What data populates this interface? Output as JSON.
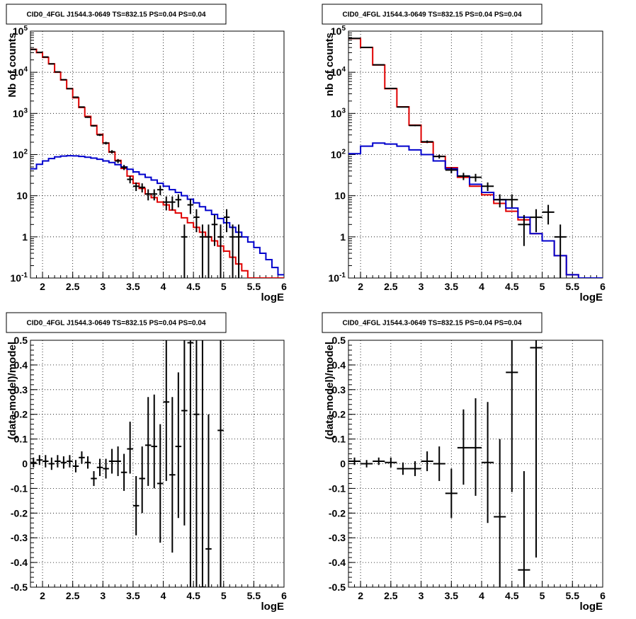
{
  "chart_data": [
    {
      "id": "p1",
      "type": "line",
      "title": "CID0_4FGL J1544.3-0649 TS=832.15 PS=0.04 PS=0.04",
      "xlabel": "logE",
      "ylabel": "Nb of counts",
      "xlim": [
        1.8,
        6.0
      ],
      "ylim": [
        0.1,
        100000
      ],
      "log_y": true,
      "grid": true,
      "x_ticks": [
        "2",
        "2.5",
        "3",
        "3.5",
        "4",
        "4.5",
        "5",
        "5.5",
        "6"
      ],
      "y_ticks": [
        "10^-1",
        "1",
        "10",
        "10^2",
        "10^3",
        "10^4",
        "10^5"
      ],
      "bin_width": 0.1,
      "bin_start": 1.8,
      "series": [
        {
          "color": "#e00000",
          "style": "step",
          "values": [
            36000,
            30000,
            23000,
            16000,
            10000,
            6500,
            4000,
            2400,
            1400,
            850,
            510,
            310,
            190,
            115,
            72,
            46,
            30,
            20,
            15,
            11,
            9,
            7,
            6,
            4.5,
            3.8,
            2.9,
            2.2,
            1.7,
            1.3,
            1.0,
            0.8,
            0.6,
            0.45,
            0.32,
            0.22,
            0.15,
            0.1,
            0.1,
            0.1,
            0.1,
            0.1,
            0.1
          ]
        },
        {
          "color": "#0000cc",
          "style": "step",
          "values": [
            45,
            58,
            70,
            80,
            88,
            92,
            94,
            93,
            90,
            86,
            82,
            77,
            70,
            64,
            57,
            50,
            44,
            38,
            33,
            28,
            24,
            20,
            17,
            14,
            12,
            10,
            8.2,
            6.7,
            5.4,
            4.4,
            3.5,
            2.8,
            2.2,
            1.7,
            1.3,
            1.0,
            0.75,
            0.55,
            0.4,
            0.28,
            0.18,
            0.12
          ]
        }
      ],
      "points": [
        {
          "x": 1.85,
          "y": 36000,
          "lo": 35700,
          "hi": 36300
        },
        {
          "x": 1.95,
          "y": 30500,
          "lo": 30200,
          "hi": 30800
        },
        {
          "x": 2.05,
          "y": 23500,
          "lo": 23200,
          "hi": 23800
        },
        {
          "x": 2.15,
          "y": 16000,
          "lo": 15800,
          "hi": 16200
        },
        {
          "x": 2.25,
          "y": 10200,
          "lo": 10000,
          "hi": 10400
        },
        {
          "x": 2.35,
          "y": 6600,
          "lo": 6500,
          "hi": 6700
        },
        {
          "x": 2.45,
          "y": 4000,
          "lo": 3930,
          "hi": 4070
        },
        {
          "x": 2.55,
          "y": 2480,
          "lo": 2430,
          "hi": 2530
        },
        {
          "x": 2.65,
          "y": 1430,
          "lo": 1390,
          "hi": 1470
        },
        {
          "x": 2.75,
          "y": 810,
          "lo": 780,
          "hi": 840
        },
        {
          "x": 2.85,
          "y": 500,
          "lo": 480,
          "hi": 520
        },
        {
          "x": 2.95,
          "y": 300,
          "lo": 283,
          "hi": 317
        },
        {
          "x": 3.05,
          "y": 190,
          "lo": 176,
          "hi": 204
        },
        {
          "x": 3.15,
          "y": 117,
          "lo": 106,
          "hi": 128
        },
        {
          "x": 3.25,
          "y": 70,
          "lo": 62,
          "hi": 78
        },
        {
          "x": 3.35,
          "y": 49,
          "lo": 42,
          "hi": 56
        },
        {
          "x": 3.45,
          "y": 25,
          "lo": 20,
          "hi": 30
        },
        {
          "x": 3.55,
          "y": 17,
          "lo": 13,
          "hi": 21
        },
        {
          "x": 3.65,
          "y": 16,
          "lo": 12,
          "hi": 20
        },
        {
          "x": 3.75,
          "y": 11,
          "lo": 7.7,
          "hi": 14.3
        },
        {
          "x": 3.85,
          "y": 11,
          "lo": 7.7,
          "hi": 14.3
        },
        {
          "x": 3.95,
          "y": 14,
          "lo": 10.3,
          "hi": 17.7
        },
        {
          "x": 4.05,
          "y": 7,
          "lo": 4.4,
          "hi": 9.6
        },
        {
          "x": 4.15,
          "y": 7,
          "lo": 4.4,
          "hi": 9.6
        },
        {
          "x": 4.25,
          "y": 8,
          "lo": 5.2,
          "hi": 10.8
        },
        {
          "x": 4.35,
          "y": 1,
          "lo": 0.1,
          "hi": 2
        },
        {
          "x": 4.45,
          "y": 6,
          "lo": 3.6,
          "hi": 8.4
        },
        {
          "x": 4.55,
          "y": 3,
          "lo": 1.3,
          "hi": 4.7
        },
        {
          "x": 4.65,
          "y": 1,
          "lo": 0.1,
          "hi": 2
        },
        {
          "x": 4.75,
          "y": 1,
          "lo": 0.1,
          "hi": 2
        },
        {
          "x": 4.85,
          "y": 2,
          "lo": 0.6,
          "hi": 3.4
        },
        {
          "x": 4.95,
          "y": 1,
          "lo": 0.1,
          "hi": 2
        },
        {
          "x": 5.05,
          "y": 3,
          "lo": 1.3,
          "hi": 4.7
        },
        {
          "x": 5.15,
          "y": 1,
          "lo": 0.1,
          "hi": 2
        },
        {
          "x": 5.25,
          "y": 1,
          "lo": 0.1,
          "hi": 2
        }
      ]
    },
    {
      "id": "p2",
      "type": "line",
      "title": "CID0_4FGL J1544.3-0649 TS=832.15 PS=0.04 PS=0.04",
      "xlabel": "logE",
      "ylabel": "nb of counts",
      "xlim": [
        1.8,
        6.0
      ],
      "ylim": [
        0.1,
        100000
      ],
      "log_y": true,
      "grid": true,
      "x_ticks": [
        "2",
        "2.5",
        "3",
        "3.5",
        "4",
        "4.5",
        "5",
        "5.5",
        "6"
      ],
      "y_ticks": [
        "10^-1",
        "1",
        "10",
        "10^2",
        "10^3",
        "10^4",
        "10^5"
      ],
      "bin_width": 0.2,
      "bin_start": 1.8,
      "series": [
        {
          "color": "#e00000",
          "style": "step",
          "values": [
            66000,
            40000,
            15000,
            4000,
            1450,
            520,
            200,
            90,
            48,
            28,
            17,
            10.5,
            6.5,
            4.2,
            2.6,
            1.2,
            0.8,
            0.35,
            0.12,
            0.1,
            0.1
          ]
        },
        {
          "color": "#0000cc",
          "style": "step",
          "values": [
            105,
            160,
            190,
            180,
            160,
            130,
            100,
            70,
            45,
            30,
            19,
            12,
            8,
            5,
            3,
            1.2,
            0.8,
            0.35,
            0.12,
            0.1,
            0.1
          ]
        }
      ],
      "points": [
        {
          "x": 1.9,
          "y": 66500,
          "lo": 66200,
          "hi": 66800
        },
        {
          "x": 2.1,
          "y": 40300,
          "lo": 40000,
          "hi": 40600
        },
        {
          "x": 2.3,
          "y": 15200,
          "lo": 15000,
          "hi": 15400
        },
        {
          "x": 2.5,
          "y": 4050,
          "lo": 3980,
          "hi": 4120
        },
        {
          "x": 2.7,
          "y": 1430,
          "lo": 1390,
          "hi": 1470
        },
        {
          "x": 2.9,
          "y": 510,
          "lo": 490,
          "hi": 530
        },
        {
          "x": 3.1,
          "y": 205,
          "lo": 190,
          "hi": 220
        },
        {
          "x": 3.3,
          "y": 90,
          "lo": 80,
          "hi": 100
        },
        {
          "x": 3.5,
          "y": 42,
          "lo": 35,
          "hi": 49
        },
        {
          "x": 3.7,
          "y": 30,
          "lo": 24,
          "hi": 36
        },
        {
          "x": 3.9,
          "y": 28,
          "lo": 22,
          "hi": 34
        },
        {
          "x": 4.1,
          "y": 17,
          "lo": 13,
          "hi": 21
        },
        {
          "x": 4.3,
          "y": 8,
          "lo": 5.2,
          "hi": 10.8
        },
        {
          "x": 4.5,
          "y": 8,
          "lo": 5.2,
          "hi": 10.8
        },
        {
          "x": 4.7,
          "y": 2,
          "lo": 0.6,
          "hi": 3.4
        },
        {
          "x": 4.9,
          "y": 3,
          "lo": 1.3,
          "hi": 4.7
        },
        {
          "x": 5.1,
          "y": 4,
          "lo": 2,
          "hi": 6
        },
        {
          "x": 5.3,
          "y": 1,
          "lo": 0.1,
          "hi": 2
        }
      ]
    },
    {
      "id": "p3",
      "type": "scatter",
      "title": "CID0_4FGL J1544.3-0649 TS=832.15 PS=0.04 PS=0.04",
      "xlabel": "logE",
      "ylabel": "(data-model)/model",
      "xlim": [
        1.8,
        6.0
      ],
      "ylim": [
        -0.5,
        0.5
      ],
      "log_y": false,
      "grid": true,
      "x_ticks": [
        "2",
        "2.5",
        "3",
        "3.5",
        "4",
        "4.5",
        "5",
        "5.5",
        "6"
      ],
      "y_ticks": [
        "-0.5",
        "-0.4",
        "-0.3",
        "-0.2",
        "-0.1",
        "0",
        "0.1",
        "0.2",
        "0.3",
        "0.4",
        "0.5"
      ],
      "bin_width": 0.1,
      "points": [
        {
          "x": 1.85,
          "y": 0.005,
          "lo": -0.015,
          "hi": 0.025
        },
        {
          "x": 1.95,
          "y": 0.015,
          "lo": -0.005,
          "hi": 0.035
        },
        {
          "x": 2.05,
          "y": 0.01,
          "lo": -0.015,
          "hi": 0.035
        },
        {
          "x": 2.15,
          "y": 0.0,
          "lo": -0.025,
          "hi": 0.025
        },
        {
          "x": 2.25,
          "y": 0.01,
          "lo": -0.015,
          "hi": 0.035
        },
        {
          "x": 2.35,
          "y": 0.005,
          "lo": -0.02,
          "hi": 0.03
        },
        {
          "x": 2.45,
          "y": 0.01,
          "lo": -0.015,
          "hi": 0.035
        },
        {
          "x": 2.55,
          "y": -0.01,
          "lo": -0.035,
          "hi": 0.015
        },
        {
          "x": 2.65,
          "y": 0.025,
          "lo": 0.0,
          "hi": 0.05
        },
        {
          "x": 2.75,
          "y": 0.005,
          "lo": -0.02,
          "hi": 0.03
        },
        {
          "x": 2.85,
          "y": -0.06,
          "lo": -0.09,
          "hi": -0.03
        },
        {
          "x": 2.95,
          "y": -0.015,
          "lo": -0.05,
          "hi": 0.02
        },
        {
          "x": 3.05,
          "y": -0.02,
          "lo": -0.06,
          "hi": 0.02
        },
        {
          "x": 3.15,
          "y": 0.01,
          "lo": -0.04,
          "hi": 0.06
        },
        {
          "x": 3.25,
          "y": 0.01,
          "lo": -0.05,
          "hi": 0.07
        },
        {
          "x": 3.35,
          "y": -0.035,
          "lo": -0.11,
          "hi": 0.04
        },
        {
          "x": 3.45,
          "y": 0.06,
          "lo": -0.04,
          "hi": 0.17
        },
        {
          "x": 3.55,
          "y": -0.17,
          "lo": -0.29,
          "hi": -0.05
        },
        {
          "x": 3.65,
          "y": -0.06,
          "lo": -0.2,
          "hi": 0.07
        },
        {
          "x": 3.75,
          "y": 0.075,
          "lo": -0.09,
          "hi": 0.27
        },
        {
          "x": 3.85,
          "y": 0.07,
          "lo": -0.1,
          "hi": 0.28
        },
        {
          "x": 3.95,
          "y": -0.08,
          "lo": -0.32,
          "hi": 0.16
        },
        {
          "x": 4.05,
          "y": 0.25,
          "lo": -0.07,
          "hi": 0.5
        },
        {
          "x": 4.15,
          "y": -0.045,
          "lo": -0.36,
          "hi": 0.27
        },
        {
          "x": 4.25,
          "y": 0.07,
          "lo": -0.22,
          "hi": 0.37
        },
        {
          "x": 4.35,
          "y": 0.215,
          "lo": -0.25,
          "hi": 0.5
        },
        {
          "x": 4.45,
          "y": 0.49,
          "lo": -0.5,
          "hi": 0.5
        },
        {
          "x": 4.55,
          "y": 0.2,
          "lo": -0.5,
          "hi": 0.5
        },
        {
          "x": 4.65,
          "y": -0.5,
          "lo": -0.5,
          "hi": 0.5
        },
        {
          "x": 4.75,
          "y": -0.345,
          "lo": -0.5,
          "hi": 0.2
        },
        {
          "x": 4.95,
          "y": 0.135,
          "lo": -0.5,
          "hi": 0.5
        }
      ]
    },
    {
      "id": "p4",
      "type": "scatter",
      "title": "CID0_4FGL J1544.3-0649 TS=832.15 PS=0.04 PS=0.04",
      "xlabel": "logE",
      "ylabel": "(data-model)/model",
      "xlim": [
        1.8,
        6.0
      ],
      "ylim": [
        -0.5,
        0.5
      ],
      "log_y": false,
      "grid": true,
      "x_ticks": [
        "2",
        "2.5",
        "3",
        "3.5",
        "4",
        "4.5",
        "5",
        "5.5",
        "6"
      ],
      "y_ticks": [
        "-0.5",
        "-0.4",
        "-0.3",
        "-0.2",
        "-0.1",
        "0",
        "0.1",
        "0.2",
        "0.3",
        "0.4",
        "0.5"
      ],
      "bin_width": 0.2,
      "points": [
        {
          "x": 1.9,
          "y": 0.01,
          "lo": -0.005,
          "hi": 0.025
        },
        {
          "x": 2.1,
          "y": 0.0,
          "lo": -0.015,
          "hi": 0.015
        },
        {
          "x": 2.3,
          "y": 0.01,
          "lo": -0.005,
          "hi": 0.025
        },
        {
          "x": 2.5,
          "y": 0.005,
          "lo": -0.015,
          "hi": 0.025
        },
        {
          "x": 2.7,
          "y": -0.02,
          "lo": -0.045,
          "hi": 0.005
        },
        {
          "x": 2.9,
          "y": -0.02,
          "lo": -0.05,
          "hi": 0.01
        },
        {
          "x": 3.1,
          "y": 0.01,
          "lo": -0.03,
          "hi": 0.05
        },
        {
          "x": 3.3,
          "y": 0.0,
          "lo": -0.07,
          "hi": 0.07
        },
        {
          "x": 3.5,
          "y": -0.12,
          "lo": -0.22,
          "hi": -0.02
        },
        {
          "x": 3.7,
          "y": 0.065,
          "lo": -0.085,
          "hi": 0.22
        },
        {
          "x": 3.9,
          "y": 0.065,
          "lo": -0.13,
          "hi": 0.265
        },
        {
          "x": 4.1,
          "y": 0.005,
          "lo": -0.24,
          "hi": 0.25
        },
        {
          "x": 4.3,
          "y": -0.215,
          "lo": -0.5,
          "hi": 0.1
        },
        {
          "x": 4.5,
          "y": 0.37,
          "lo": -0.115,
          "hi": 0.5
        },
        {
          "x": 4.7,
          "y": -0.43,
          "lo": -0.5,
          "hi": -0.03
        },
        {
          "x": 4.9,
          "y": 0.47,
          "lo": -0.38,
          "hi": 0.5
        }
      ]
    }
  ]
}
